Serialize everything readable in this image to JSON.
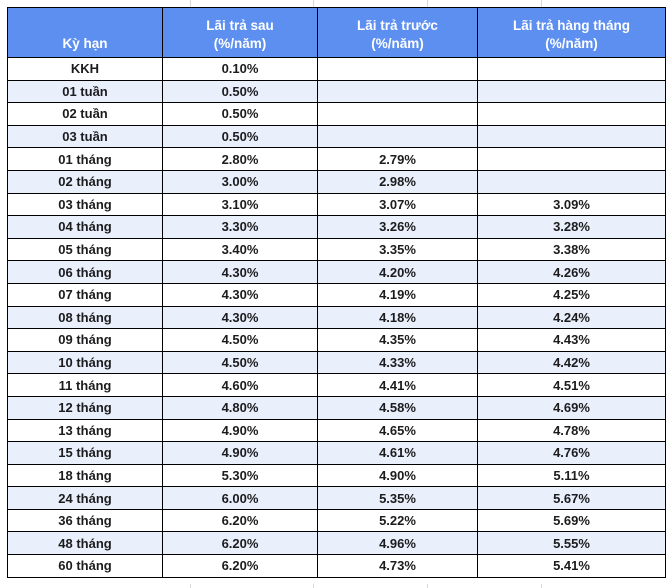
{
  "chart_data": {
    "type": "table",
    "columns": [
      {
        "label": "Kỳ hạn",
        "sub": ""
      },
      {
        "label": "Lãi trả sau",
        "sub": "(%/năm)"
      },
      {
        "label": "Lãi trả trước",
        "sub": "(%/năm)"
      },
      {
        "label": "Lãi trả hàng tháng",
        "sub": "(%/năm)"
      }
    ],
    "rows": [
      [
        "KKH",
        "0.10%",
        "",
        ""
      ],
      [
        "01 tuần",
        "0.50%",
        "",
        ""
      ],
      [
        "02 tuần",
        "0.50%",
        "",
        ""
      ],
      [
        "03 tuần",
        "0.50%",
        "",
        ""
      ],
      [
        "01 tháng",
        "2.80%",
        "2.79%",
        ""
      ],
      [
        "02 tháng",
        "3.00%",
        "2.98%",
        ""
      ],
      [
        "03 tháng",
        "3.10%",
        "3.07%",
        "3.09%"
      ],
      [
        "04 tháng",
        "3.30%",
        "3.26%",
        "3.28%"
      ],
      [
        "05 tháng",
        "3.40%",
        "3.35%",
        "3.38%"
      ],
      [
        "06 tháng",
        "4.30%",
        "4.20%",
        "4.26%"
      ],
      [
        "07 tháng",
        "4.30%",
        "4.19%",
        "4.25%"
      ],
      [
        "08 tháng",
        "4.30%",
        "4.18%",
        "4.24%"
      ],
      [
        "09 tháng",
        "4.50%",
        "4.35%",
        "4.43%"
      ],
      [
        "10 tháng",
        "4.50%",
        "4.33%",
        "4.42%"
      ],
      [
        "11 tháng",
        "4.60%",
        "4.41%",
        "4.51%"
      ],
      [
        "12 tháng",
        "4.80%",
        "4.58%",
        "4.69%"
      ],
      [
        "13 tháng",
        "4.90%",
        "4.65%",
        "4.78%"
      ],
      [
        "15 tháng",
        "4.90%",
        "4.61%",
        "4.76%"
      ],
      [
        "18 tháng",
        "5.30%",
        "4.90%",
        "5.11%"
      ],
      [
        "24 tháng",
        "6.00%",
        "5.35%",
        "5.67%"
      ],
      [
        "36 tháng",
        "6.20%",
        "5.22%",
        "5.69%"
      ],
      [
        "48 tháng",
        "6.20%",
        "4.96%",
        "5.55%"
      ],
      [
        "60 tháng",
        "6.20%",
        "4.73%",
        "5.41%"
      ]
    ]
  },
  "colors": {
    "header_bg": "#5C8FF0",
    "header_text": "#FFFFFF",
    "band_bg": "#E9EFFB",
    "border": "#000000",
    "cell_text": "#1C1C1E",
    "gridline": "#D8D8D8"
  }
}
